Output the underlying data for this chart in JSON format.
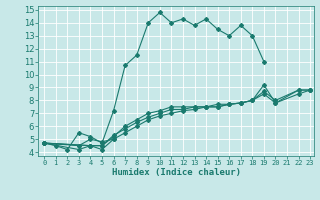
{
  "xlabel": "Humidex (Indice chaleur)",
  "xlim": [
    0,
    23
  ],
  "ylim": [
    4,
    15
  ],
  "yticks": [
    4,
    5,
    6,
    7,
    8,
    9,
    10,
    11,
    12,
    13,
    14,
    15
  ],
  "xticks": [
    0,
    1,
    2,
    3,
    4,
    5,
    6,
    7,
    8,
    9,
    10,
    11,
    12,
    13,
    14,
    15,
    16,
    17,
    18,
    19,
    20,
    21,
    22,
    23
  ],
  "bg_color": "#c8e8e8",
  "line_color": "#1a7a6e",
  "grid_color": "#b0d8d8",
  "series": [
    {
      "x": [
        0,
        1,
        2,
        3,
        4,
        5,
        6,
        7,
        8,
        9,
        10,
        11,
        12,
        13,
        14,
        15,
        16,
        17,
        18,
        19
      ],
      "y": [
        4.7,
        4.5,
        4.2,
        5.5,
        5.2,
        4.7,
        7.2,
        10.7,
        11.5,
        14.0,
        14.8,
        14.0,
        14.3,
        13.8,
        14.3,
        13.5,
        13.0,
        13.8,
        13.0,
        11.0
      ]
    },
    {
      "x": [
        0,
        3,
        4,
        5,
        6
      ],
      "y": [
        4.7,
        4.5,
        5.0,
        4.8,
        5.0
      ]
    },
    {
      "x": [
        0,
        3,
        4,
        5,
        6,
        7,
        8,
        9,
        10,
        11,
        12,
        13,
        14,
        15,
        16,
        17,
        18,
        19,
        20,
        22,
        23
      ],
      "y": [
        4.7,
        4.2,
        4.5,
        4.5,
        5.2,
        6.0,
        6.5,
        7.0,
        7.2,
        7.5,
        7.5,
        7.5,
        7.5,
        7.5,
        7.7,
        7.8,
        8.0,
        9.2,
        7.8,
        8.8,
        8.8
      ]
    },
    {
      "x": [
        0,
        4,
        5,
        6,
        7,
        8,
        9,
        10,
        11,
        12,
        13,
        14,
        15,
        16,
        17,
        18,
        19,
        20,
        22,
        23
      ],
      "y": [
        4.7,
        4.5,
        4.5,
        5.3,
        5.8,
        6.3,
        6.7,
        7.0,
        7.3,
        7.3,
        7.5,
        7.5,
        7.7,
        7.7,
        7.8,
        8.0,
        8.7,
        8.0,
        8.8,
        8.8
      ]
    },
    {
      "x": [
        0,
        4,
        5,
        6,
        7,
        8,
        9,
        10,
        11,
        12,
        13,
        14,
        15,
        16,
        17,
        18,
        19,
        20,
        22,
        23
      ],
      "y": [
        4.7,
        4.5,
        4.2,
        5.0,
        5.5,
        6.0,
        6.5,
        6.8,
        7.0,
        7.2,
        7.3,
        7.5,
        7.5,
        7.7,
        7.8,
        8.0,
        8.5,
        7.8,
        8.5,
        8.8
      ]
    }
  ]
}
